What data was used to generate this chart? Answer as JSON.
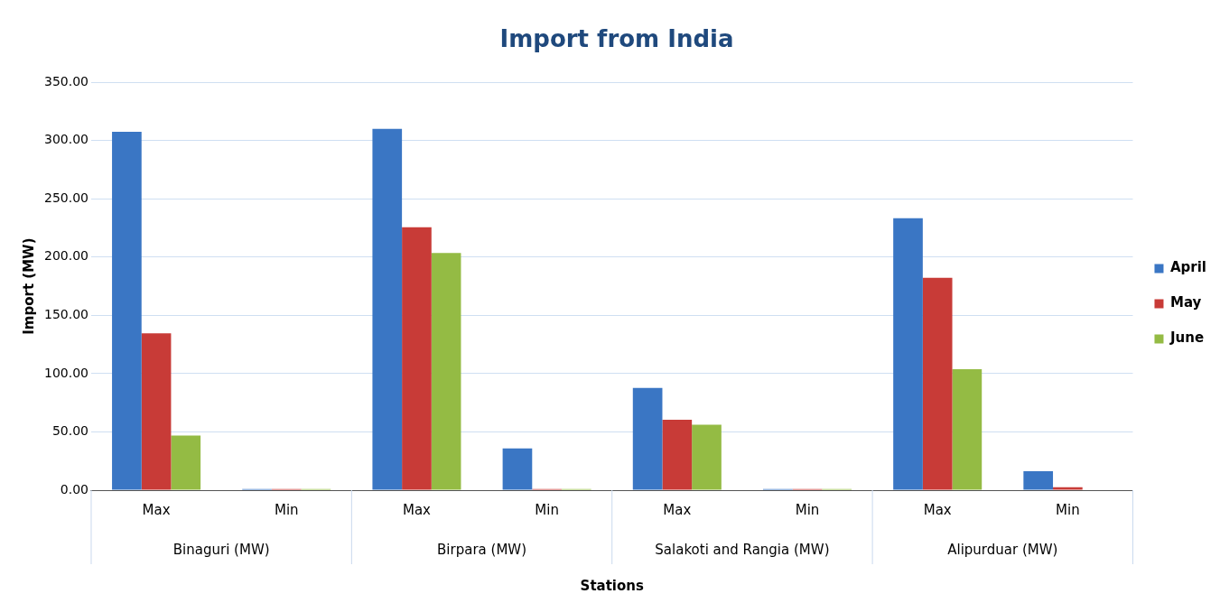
{
  "chart_data": {
    "type": "bar",
    "title": "Import from India",
    "xlabel": "Stations",
    "ylabel": "Import (MW)",
    "categories": [
      "Max",
      "Min",
      "Max",
      "Min",
      "Max",
      "Min",
      "Max",
      "Min"
    ],
    "annotations": [
      "Binaguri (MW)",
      "Birpara (MW)",
      "Salakoti and Rangia (MW)",
      "Alipurduar (MW)"
    ],
    "series": [
      {
        "name": "April",
        "color": "#3a76c4",
        "values": [
          307.5,
          1,
          310,
          35.8,
          87.7,
          1,
          233.4,
          16.2
        ]
      },
      {
        "name": "May",
        "color": "#c83b37",
        "values": [
          134.6,
          1,
          225.7,
          1,
          60.5,
          1,
          182.3,
          2.6
        ]
      },
      {
        "name": "June",
        "color": "#94bb44",
        "values": [
          46.8,
          1,
          203.6,
          1,
          56.2,
          1,
          103.9,
          0
        ]
      }
    ],
    "ylim": [
      0,
      350
    ],
    "yticks": [
      {
        "value": 0,
        "label": "0.00"
      },
      {
        "value": 50,
        "label": "50.00"
      },
      {
        "value": 100,
        "label": "100.00"
      },
      {
        "value": 150,
        "label": "150.00"
      },
      {
        "value": 200,
        "label": "200.00"
      },
      {
        "value": 250,
        "label": "250.00"
      },
      {
        "value": 300,
        "label": "300.00"
      },
      {
        "value": 350,
        "label": "350.00"
      }
    ],
    "grid": "y",
    "legend": "right"
  }
}
